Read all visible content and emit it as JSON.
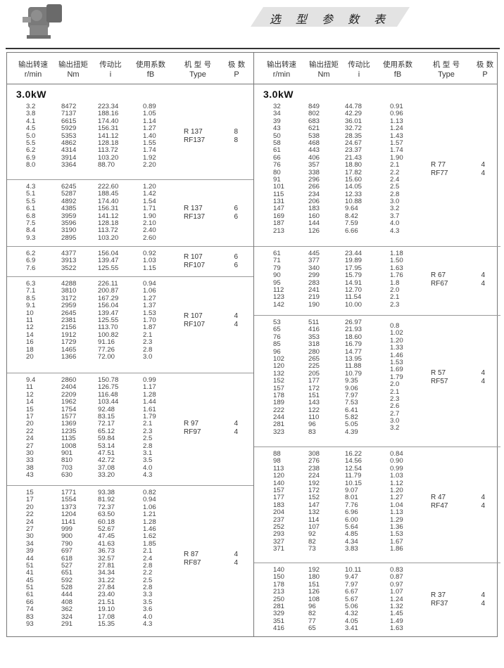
{
  "page": {
    "title": "选 型 参 数 表",
    "logo_icon": "gear-reducer-image"
  },
  "header": {
    "columns": [
      {
        "zh": "输出转速",
        "en": "r/min"
      },
      {
        "zh": "输出扭矩",
        "en": "Nm"
      },
      {
        "zh": "传动比",
        "en": "i"
      },
      {
        "zh": "使用系数",
        "en": "fB"
      },
      {
        "zh": "机 型 号",
        "en": "Type"
      },
      {
        "zh": "极  数",
        "en": "P"
      }
    ]
  },
  "left": {
    "power": "3.0kW",
    "sections": [
      {
        "types": [
          "R 137",
          "RF137"
        ],
        "poles": [
          "8",
          "8"
        ],
        "rows": [
          [
            "3.2",
            "8472",
            "223.34",
            "0.89"
          ],
          [
            "3.8",
            "7137",
            "188.16",
            "1.05"
          ],
          [
            "4.1",
            "6615",
            "174.40",
            "1.14"
          ],
          [
            "4.5",
            "5929",
            "156.31",
            "1.27"
          ],
          [
            "5.0",
            "5353",
            "141.12",
            "1.40"
          ],
          [
            "5.5",
            "4862",
            "128.18",
            "1.55"
          ],
          [
            "6.2",
            "4314",
            "113.72",
            "1.74"
          ],
          [
            "6.9",
            "3914",
            "103.20",
            "1.92"
          ],
          [
            "8.0",
            "3364",
            "88.70",
            "2.20"
          ]
        ]
      },
      {
        "types": [
          "R 137",
          "RF137"
        ],
        "poles": [
          "6",
          "6"
        ],
        "rows": [
          [
            "4.3",
            "6245",
            "222.60",
            "1.20"
          ],
          [
            "5.1",
            "5287",
            "188.45",
            "1.42"
          ],
          [
            "5.5",
            "4892",
            "174.40",
            "1.54"
          ],
          [
            "6.1",
            "4385",
            "156.31",
            "1.71"
          ],
          [
            "6.8",
            "3959",
            "141.12",
            "1.90"
          ],
          [
            "7.5",
            "3596",
            "128.18",
            "2.10"
          ],
          [
            "8.4",
            "3190",
            "113.72",
            "2.40"
          ],
          [
            "9.3",
            "2895",
            "103.20",
            "2.60"
          ]
        ]
      },
      {
        "types": [
          "R 107",
          "RF107"
        ],
        "poles": [
          "6",
          "6"
        ],
        "rows": [
          [
            "6.2",
            "4377",
            "156.04",
            "0.92"
          ],
          [
            "6.9",
            "3913",
            "139.47",
            "1.03"
          ],
          [
            "7.6",
            "3522",
            "125.55",
            "1.15"
          ]
        ]
      },
      {
        "types": [
          "R 107",
          "RF107"
        ],
        "poles": [
          "4",
          "4"
        ],
        "rows": [
          [
            "6.3",
            "4288",
            "226.11",
            "0.94"
          ],
          [
            "7.1",
            "3810",
            "200.87",
            "1.06"
          ],
          [
            "8.5",
            "3172",
            "167.29",
            "1.27"
          ],
          [
            "9.1",
            "2959",
            "156.04",
            "1.37"
          ],
          [
            "10",
            "2645",
            "139.47",
            "1.53"
          ],
          [
            "11",
            "2381",
            "125.55",
            "1.70"
          ],
          [
            "12",
            "2156",
            "113.70",
            "1.87"
          ],
          [
            "14",
            "1912",
            "100.82",
            "2.1"
          ],
          [
            "16",
            "1729",
            "91.16",
            "2.3"
          ],
          [
            "18",
            "1465",
            "77.26",
            "2.8"
          ],
          [
            "20",
            "1366",
            "72.00",
            "3.0"
          ]
        ]
      },
      {
        "types": [
          "R 97",
          "RF97"
        ],
        "poles": [
          "4",
          "4"
        ],
        "rows": [
          [
            "9.4",
            "2860",
            "150.78",
            "0.99"
          ],
          [
            "11",
            "2404",
            "126.75",
            "1.17"
          ],
          [
            "12",
            "2209",
            "116.48",
            "1.28"
          ],
          [
            "14",
            "1962",
            "103.44",
            "1.44"
          ],
          [
            "15",
            "1754",
            "92.48",
            "1.61"
          ],
          [
            "17",
            "1577",
            "83.15",
            "1.79"
          ],
          [
            "20",
            "1369",
            "72.17",
            "2.1"
          ],
          [
            "22",
            "1235",
            "65.12",
            "2.3"
          ],
          [
            "24",
            "1135",
            "59.84",
            "2.5"
          ],
          [
            "27",
            "1008",
            "53.14",
            "2.8"
          ],
          [
            "30",
            "901",
            "47.51",
            "3.1"
          ],
          [
            "33",
            "810",
            "42.72",
            "3.5"
          ],
          [
            "38",
            "703",
            "37.08",
            "4.0"
          ],
          [
            "43",
            "630",
            "33.20",
            "4.3"
          ]
        ]
      },
      {
        "types": [
          "R 87",
          "RF87"
        ],
        "poles": [
          "4",
          "4"
        ],
        "rows": [
          [
            "15",
            "1771",
            "93.38",
            "0.82"
          ],
          [
            "17",
            "1554",
            "81.92",
            "0.94"
          ],
          [
            "20",
            "1373",
            "72.37",
            "1.06"
          ],
          [
            "22",
            "1204",
            "63.50",
            "1.21"
          ],
          [
            "24",
            "1141",
            "60.18",
            "1.28"
          ],
          [
            "27",
            "999",
            "52.67",
            "1.46"
          ],
          [
            "30",
            "900",
            "47.45",
            "1.62"
          ],
          [
            "34",
            "790",
            "41.63",
            "1.85"
          ],
          [
            "39",
            "697",
            "36.73",
            "2.1"
          ],
          [
            "44",
            "618",
            "32.57",
            "2.4"
          ],
          [
            "51",
            "527",
            "27.81",
            "2.8"
          ],
          [
            "41",
            "651",
            "34.34",
            "2.2"
          ],
          [
            "45",
            "592",
            "31.22",
            "2.5"
          ],
          [
            "51",
            "528",
            "27.84",
            "2.8"
          ],
          [
            "61",
            "444",
            "23.40",
            "3.3"
          ],
          [
            "66",
            "408",
            "21.51",
            "3.5"
          ],
          [
            "74",
            "362",
            "19.10",
            "3.6"
          ],
          [
            "83",
            "324",
            "17.08",
            "4.0"
          ],
          [
            "93",
            "291",
            "15.35",
            "4.3"
          ]
        ]
      }
    ]
  },
  "right": {
    "power": "3.0kW",
    "sections": [
      {
        "types": [
          "R 77",
          "RF77"
        ],
        "poles": [
          "4",
          "4"
        ],
        "rows": [
          [
            "32",
            "849",
            "44.78",
            "0.91"
          ],
          [
            "34",
            "802",
            "42.29",
            "0.96"
          ],
          [
            "39",
            "683",
            "36.01",
            "1.13"
          ],
          [
            "43",
            "621",
            "32.72",
            "1.24"
          ],
          [
            "50",
            "538",
            "28.35",
            "1.43"
          ],
          [
            "58",
            "468",
            "24.67",
            "1.57"
          ],
          [
            "61",
            "443",
            "23.37",
            "1.74"
          ],
          [
            "66",
            "406",
            "21.43",
            "1.90"
          ],
          [
            "76",
            "357",
            "18.80",
            "2.1"
          ],
          [
            "80",
            "338",
            "17.82",
            "2.2"
          ],
          [
            "91",
            "296",
            "15.60",
            "2.4"
          ],
          [
            "101",
            "266",
            "14.05",
            "2.5"
          ],
          [
            "115",
            "234",
            "12.33",
            "2.8"
          ],
          [
            "131",
            "206",
            "10.88",
            "3.0"
          ],
          [
            "147",
            "183",
            "9.64",
            "3.2"
          ],
          [
            "169",
            "160",
            "8.42",
            "3.7"
          ],
          [
            "187",
            "144",
            "7.59",
            "4.0"
          ],
          [
            "213",
            "126",
            "6.66",
            "4.3"
          ]
        ]
      },
      {
        "types": [
          "R 67",
          "RF67"
        ],
        "poles": [
          "4",
          "4"
        ],
        "rows": [
          [
            "61",
            "445",
            "23.44",
            "1.18"
          ],
          [
            "71",
            "377",
            "19.89",
            "1.50"
          ],
          [
            "79",
            "340",
            "17.95",
            "1.63"
          ],
          [
            "90",
            "299",
            "15.79",
            "1.76"
          ],
          [
            "95",
            "283",
            "14.91",
            "1.8"
          ],
          [
            "112",
            "241",
            "12.70",
            "2.0"
          ],
          [
            "123",
            "219",
            "11.54",
            "2.1"
          ],
          [
            "142",
            "190",
            "10.00",
            "2.3"
          ]
        ]
      },
      {
        "types": [
          "R 57",
          "RF57"
        ],
        "poles": [
          "4",
          "4"
        ],
        "rows": [
          [
            "53",
            "511",
            "26.97",
            "0.8"
          ],
          [
            "65",
            "416",
            "21.93",
            "1.02"
          ],
          [
            "76",
            "353",
            "18.60",
            "1.20"
          ],
          [
            "85",
            "318",
            "16.79",
            "1.33"
          ],
          [
            "96",
            "280",
            "14.77",
            "1.46"
          ],
          [
            "102",
            "265",
            "13.95",
            "1.53"
          ],
          [
            "120",
            "225",
            "11.88",
            "1.69"
          ],
          [
            "132",
            "205",
            "10.79",
            "1.79"
          ],
          [
            "152",
            "177",
            "9.35",
            "2.0"
          ],
          [
            "157",
            "172",
            "9.06",
            "2.1"
          ],
          [
            "178",
            "151",
            "7.97",
            "2.3"
          ],
          [
            "189",
            "143",
            "7.53",
            "2.6"
          ],
          [
            "222",
            "122",
            "6.41",
            "2.7"
          ],
          [
            "244",
            "110",
            "5.82",
            "3.0"
          ],
          [
            "281",
            "96",
            "5.05",
            "3.2"
          ],
          [
            "323",
            "83",
            "4.39",
            ""
          ]
        ]
      },
      {
        "types": [
          "R 47",
          "RF47"
        ],
        "poles": [
          "4",
          "4"
        ],
        "rows": [
          [
            "88",
            "308",
            "16.22",
            "0.84"
          ],
          [
            "98",
            "276",
            "14.56",
            "0.90"
          ],
          [
            "113",
            "238",
            "12.54",
            "0.99"
          ],
          [
            "120",
            "224",
            "11.79",
            "1.03"
          ],
          [
            "140",
            "192",
            "10.15",
            "1.12"
          ],
          [
            "157",
            "172",
            "9.07",
            "1.20"
          ],
          [
            "177",
            "152",
            "8.01",
            "1.27"
          ],
          [
            "183",
            "147",
            "7.76",
            "1.04"
          ],
          [
            "204",
            "132",
            "6.96",
            "1.13"
          ],
          [
            "237",
            "114",
            "6.00",
            "1.29"
          ],
          [
            "252",
            "107",
            "5.64",
            "1.36"
          ],
          [
            "293",
            "92",
            "4.85",
            "1.53"
          ],
          [
            "327",
            "82",
            "4.34",
            "1.67"
          ],
          [
            "371",
            "73",
            "3.83",
            "1.86"
          ]
        ]
      },
      {
        "types": [
          "R 37",
          "RF37"
        ],
        "poles": [
          "4",
          "4"
        ],
        "rows": [
          [
            "140",
            "192",
            "10.11",
            "0.83"
          ],
          [
            "150",
            "180",
            "9.47",
            "0.87"
          ],
          [
            "178",
            "151",
            "7.97",
            "0.97"
          ],
          [
            "213",
            "126",
            "6.67",
            "1.07"
          ],
          [
            "250",
            "108",
            "5.67",
            "1.24"
          ],
          [
            "281",
            "96",
            "5.06",
            "1.32"
          ],
          [
            "329",
            "82",
            "4.32",
            "1.45"
          ],
          [
            "351",
            "77",
            "4.05",
            "1.49"
          ],
          [
            "416",
            "65",
            "3.41",
            "1.63"
          ]
        ]
      }
    ]
  }
}
